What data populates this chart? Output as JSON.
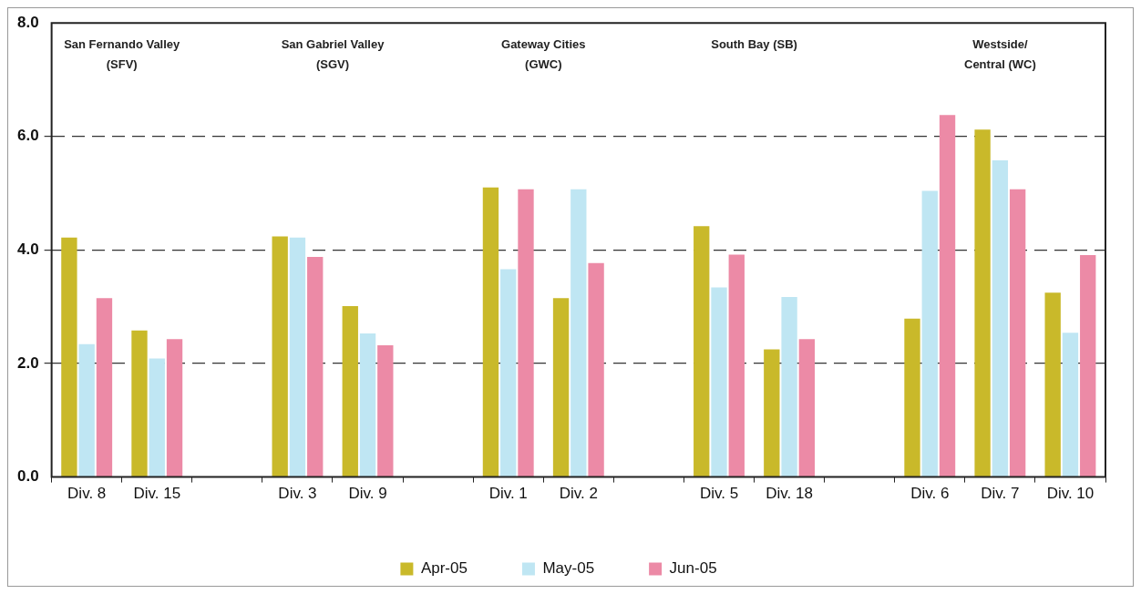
{
  "chart_data": {
    "type": "bar",
    "categories": [
      "Div. 8",
      "Div. 15",
      null,
      "Div. 3",
      "Div. 9",
      null,
      "Div. 1",
      "Div. 2",
      null,
      "Div. 5",
      "Div. 18",
      null,
      "Div. 6",
      "Div. 7",
      "Div. 10"
    ],
    "series": [
      {
        "name": "Apr-05",
        "color": "#c9b92a",
        "values": [
          4.22,
          2.58,
          null,
          4.24,
          3.01,
          null,
          5.1,
          3.15,
          null,
          4.42,
          2.25,
          null,
          2.79,
          6.12,
          3.25
        ]
      },
      {
        "name": "May-05",
        "color": "#bfe6f3",
        "values": [
          2.34,
          2.09,
          null,
          4.22,
          2.53,
          null,
          3.66,
          5.07,
          null,
          3.34,
          3.17,
          null,
          5.04,
          5.58,
          2.54
        ]
      },
      {
        "name": "Jun-05",
        "color": "#ec8aa6",
        "values": [
          3.15,
          2.43,
          null,
          3.88,
          2.32,
          null,
          5.07,
          3.77,
          null,
          3.92,
          2.43,
          null,
          6.38,
          5.07,
          3.91
        ]
      }
    ],
    "ylim": [
      0,
      8
    ],
    "yticks": [
      {
        "value": 0,
        "label": "0.0"
      },
      {
        "value": 2,
        "label": "2.0"
      },
      {
        "value": 4,
        "label": "4.0"
      },
      {
        "value": 6,
        "label": "6.0"
      },
      {
        "value": 8,
        "label": "8.0"
      }
    ],
    "grid": "y",
    "line_style": "dashed",
    "legend": "bottom",
    "annotations": [
      "San Fernando Valley\n(SFV)",
      "San Gabriel Valley\n(SGV)",
      "Gateway Cities\n(GWC)",
      "South Bay (SB)",
      "Westside/\nCentral (WC)"
    ]
  }
}
